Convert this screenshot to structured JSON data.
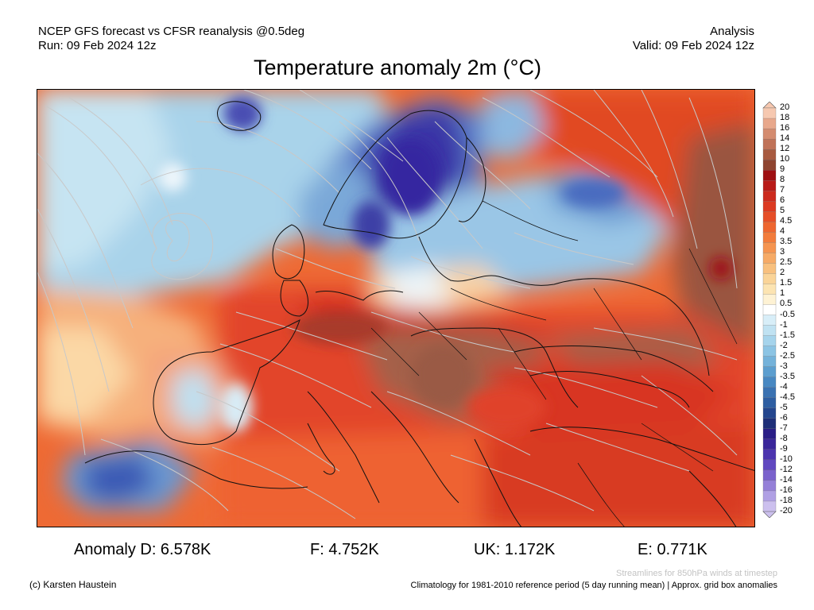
{
  "header": {
    "line1_left": "NCEP GFS forecast vs CFSR reanalysis @0.5deg",
    "line2_left": "Run: 09 Feb 2024 12z",
    "line1_right": "Analysis",
    "line2_right": "Valid: 09 Feb 2024 12z"
  },
  "title": "Temperature anomaly 2m (°C)",
  "map": {
    "field": "2m temperature anomaly",
    "units": "°C",
    "overlay": "850hPa wind streamlines",
    "colors": {
      "land_outline": "#111111",
      "streamline": "#c8c8c8"
    }
  },
  "colorbar": {
    "labels": [
      "20",
      "18",
      "16",
      "14",
      "12",
      "10",
      "9",
      "8",
      "7",
      "6",
      "5",
      "4.5",
      "4",
      "3.5",
      "3",
      "2.5",
      "2",
      "1.5",
      "1",
      "0.5",
      "-0.5",
      "-1",
      "-1.5",
      "-2",
      "-2.5",
      "-3",
      "-3.5",
      "-4",
      "-4.5",
      "-5",
      "-6",
      "-7",
      "-8",
      "-9",
      "-10",
      "-12",
      "-14",
      "-16",
      "-18",
      "-20"
    ],
    "colors": [
      "#f6c8b0",
      "#e8a88c",
      "#d48c70",
      "#c07258",
      "#a85a40",
      "#8e4430",
      "#9e0f12",
      "#b81a18",
      "#cc2a1e",
      "#dc3a22",
      "#e64e28",
      "#ee6630",
      "#f27c3c",
      "#f59450",
      "#f6aa66",
      "#f8c07e",
      "#fad498",
      "#fce4b2",
      "#fef2d4",
      "#ffffff",
      "#d8eef8",
      "#c0e2f2",
      "#a6d4ec",
      "#8cc4e4",
      "#74b2da",
      "#5c9ecf",
      "#4888c2",
      "#3a72b2",
      "#2e5ea2",
      "#24468e",
      "#1e2f78",
      "#2a1e86",
      "#3a269a",
      "#4c34ae",
      "#6048c0",
      "#7a62cc",
      "#9580d8",
      "#b0a0e4",
      "#ccc0ee"
    ]
  },
  "anomalies": [
    {
      "label": "Anomaly D: 6.578K"
    },
    {
      "label": "F: 4.752K"
    },
    {
      "label": "UK: 1.172K"
    },
    {
      "label": "E: 0.771K"
    }
  ],
  "footer": {
    "credit": "(c) Karsten Haustein",
    "streamlines_note": "Streamlines for 850hPa winds at timestep",
    "climatology_note": "Climatology for 1981-2010 reference period (5 day running mean) | Approx. grid box anomalies"
  }
}
